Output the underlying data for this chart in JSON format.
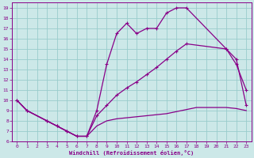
{
  "xlabel": "Windchill (Refroidissement éolien,°C)",
  "bg_color": "#cce8e8",
  "grid_color": "#99cccc",
  "line_color": "#880088",
  "xlim": [
    -0.5,
    23.5
  ],
  "ylim": [
    6,
    19.5
  ],
  "xticks": [
    0,
    1,
    2,
    3,
    4,
    5,
    6,
    7,
    8,
    9,
    10,
    11,
    12,
    13,
    14,
    15,
    16,
    17,
    18,
    19,
    20,
    21,
    22,
    23
  ],
  "yticks": [
    6,
    7,
    8,
    9,
    10,
    11,
    12,
    13,
    14,
    15,
    16,
    17,
    18,
    19
  ],
  "curve1_x": [
    0,
    1,
    3,
    4,
    5,
    6,
    7,
    8,
    9,
    10,
    11,
    12,
    13,
    14,
    15,
    16,
    17,
    21,
    22,
    23
  ],
  "curve1_y": [
    10,
    9,
    8,
    7.5,
    7.0,
    6.5,
    6.5,
    9.0,
    13.5,
    16.5,
    17.5,
    16.5,
    17.0,
    17.0,
    18.5,
    19.0,
    19.0,
    15.0,
    13.5,
    11.0
  ],
  "curve2_x": [
    0,
    1,
    3,
    4,
    5,
    6,
    7,
    8,
    9,
    10,
    11,
    12,
    13,
    14,
    15,
    16,
    17,
    21,
    22,
    23
  ],
  "curve2_y": [
    10,
    9,
    8,
    7.5,
    7.0,
    6.5,
    6.5,
    8.5,
    9.5,
    10.5,
    11.2,
    11.8,
    12.5,
    13.2,
    14.0,
    14.8,
    15.5,
    15.0,
    14.0,
    9.5
  ],
  "curve3_x": [
    0,
    1,
    3,
    4,
    5,
    6,
    7,
    8,
    9,
    10,
    11,
    12,
    13,
    14,
    15,
    16,
    17,
    18,
    21,
    22,
    23
  ],
  "curve3_y": [
    10,
    9,
    8,
    7.5,
    7.0,
    6.5,
    6.5,
    7.5,
    8.0,
    8.2,
    8.3,
    8.4,
    8.5,
    8.6,
    8.7,
    8.9,
    9.1,
    9.3,
    9.3,
    9.2,
    9.0
  ]
}
